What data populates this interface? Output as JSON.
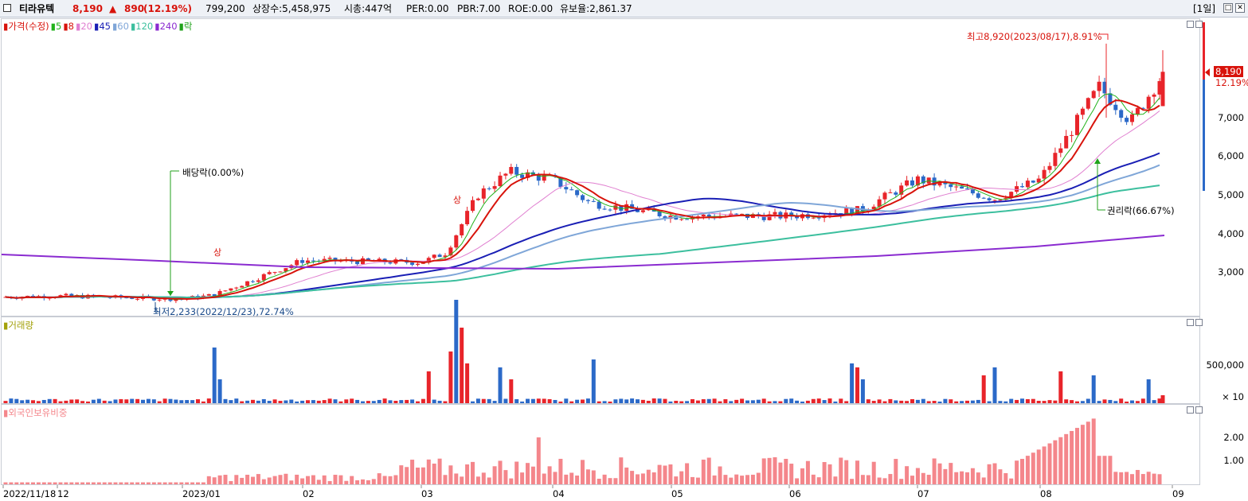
{
  "header": {
    "stock_name": "티라유텍",
    "price": "8,190",
    "change_arrow": "▲",
    "change": "890",
    "change_pct": "(12.19%)",
    "volume": "799,200",
    "shares": "상장수:5,458,975",
    "market_cap": "시총:447억",
    "per": "PER:0.00",
    "pbr": "PBR:7.00",
    "roe": "ROE:0.00",
    "float": "유보율:2,861.37",
    "period": "[1일]"
  },
  "price_pane": {
    "legend": [
      {
        "label": "가격(수정)",
        "color": "#d8130b"
      },
      {
        "label": "5",
        "color": "#21b21b"
      },
      {
        "label": "8",
        "color": "#d8130b"
      },
      {
        "label": "20",
        "color": "#e07fd0"
      },
      {
        "label": "45",
        "color": "#1a1fb5"
      },
      {
        "label": "60",
        "color": "#7fa6d8"
      },
      {
        "label": "120",
        "color": "#3cbf9e"
      },
      {
        "label": "240",
        "color": "#8a2bd0"
      },
      {
        "label": "락",
        "color": "#21a21b"
      }
    ],
    "y_ticks": [
      "7,000",
      "6,000",
      "5,000",
      "4,000",
      "3,000"
    ],
    "current_price_tag": "8,190",
    "current_pct_tag": "12.19%",
    "high_note": "최고8,920(2023/08/17),8.91%",
    "low_note": "최저2,233(2022/12/23),72.74%",
    "dividend_note": "배당락(0.00%)",
    "rights_note": "권리락(66.67%)",
    "limit_up_marks": [
      "상",
      "상"
    ]
  },
  "volume_pane": {
    "legend": "거래량",
    "y_ticks": [
      "500,000"
    ],
    "multiplier": "× 10"
  },
  "foreign_pane": {
    "legend": "외국인보유비중",
    "y_ticks": [
      "2.00",
      "1.00"
    ]
  },
  "x_axis": {
    "labels": [
      "2022/11/18",
      "12",
      "2023/01",
      "02",
      "03",
      "04",
      "05",
      "06",
      "07",
      "08",
      "09"
    ]
  },
  "colors": {
    "up": "#e8242a",
    "down": "#2b69c8",
    "foreign_bar": "#f4868b",
    "ma5": "#21b21b",
    "ma8": "#d8130b",
    "ma20": "#e07fd0",
    "ma45": "#1a1fb5",
    "ma60": "#7fa6d8",
    "ma120": "#3cbf9e",
    "ma240": "#8a2bd0"
  },
  "chart_data": {
    "type": "candlestick",
    "period": "daily",
    "x_range": [
      "2022/11/18",
      "2023/08/31"
    ],
    "y_range_price": [
      2100,
      9000
    ],
    "anchors": [
      {
        "month": "2022/11/18",
        "close": 2350
      },
      {
        "month": "2022/12",
        "close": 2350
      },
      {
        "month": "2023/01",
        "close": 3400
      },
      {
        "month": "2023/02",
        "close": 3250
      },
      {
        "month": "2023/03",
        "close": 5200
      },
      {
        "month": "2023/04",
        "close": 4700
      },
      {
        "month": "2023/05",
        "close": 4450
      },
      {
        "month": "2023/06",
        "close": 4500
      },
      {
        "month": "2023/07",
        "close": 5100
      },
      {
        "month": "2023/08",
        "close": 7300
      }
    ],
    "last": {
      "close": 8190,
      "change": 890,
      "change_pct": 12.19
    },
    "high": {
      "value": 8920,
      "date": "2023/08/17"
    },
    "low": {
      "value": 2233,
      "date": "2022/12/23"
    }
  }
}
